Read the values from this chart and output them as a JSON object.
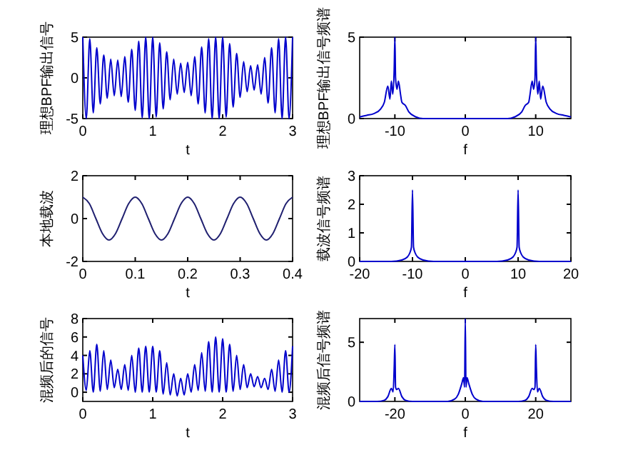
{
  "chart_data": [
    {
      "type": "line",
      "xlabel": "t",
      "ylabel": "理想BPF输出信号",
      "xlim": [
        0,
        3
      ],
      "ylim": [
        -5,
        5
      ],
      "xticks": [
        0,
        1,
        2,
        3
      ],
      "yticks": [
        -5,
        0,
        5
      ],
      "series": [
        {
          "color": "#0000cc",
          "x": [
            0,
            0.05,
            0.1,
            0.15,
            0.2,
            0.25,
            0.3,
            0.35,
            0.4,
            0.45,
            0.5,
            0.55,
            0.6,
            0.65,
            0.7,
            0.75,
            0.8,
            0.85,
            0.9,
            0.95,
            1,
            1.05,
            1.1,
            1.15,
            1.2,
            1.25,
            1.3,
            1.35,
            1.4,
            1.45,
            1.5,
            1.55,
            1.6,
            1.65,
            1.7,
            1.75,
            1.8,
            1.85,
            1.9,
            1.95,
            2,
            2.05,
            2.1,
            2.15,
            2.2,
            2.25,
            2.3,
            2.35,
            2.4,
            2.45,
            2.5,
            2.55,
            2.6,
            2.65,
            2.7,
            2.75,
            2.8,
            2.85,
            2.9,
            2.95,
            3
          ],
          "values": [
            5,
            -5,
            4.8,
            -4.3,
            3.7,
            -3.2,
            2.8,
            -2.5,
            2.3,
            -2.2,
            2.2,
            -2.3,
            2.6,
            -3,
            3.5,
            -4,
            4.5,
            -4.9,
            5,
            -5,
            5,
            -4.8,
            4.3,
            -3.8,
            3.2,
            -2.7,
            2.3,
            -2,
            1.8,
            -1.8,
            1.9,
            -2.2,
            2.6,
            -3.2,
            3.8,
            -4.3,
            4.8,
            -5,
            5,
            -5,
            5,
            -4.8,
            4.2,
            -3.6,
            3,
            -2.4,
            2,
            -1.7,
            1.5,
            -1.5,
            1.6,
            -2,
            2.5,
            -3.1,
            3.7,
            -4.3,
            4.8,
            -5,
            5,
            -5,
            5
          ]
        }
      ]
    },
    {
      "type": "line",
      "xlabel": "f",
      "ylabel": "理想BPF输出信号频谱",
      "xlim": [
        -15,
        15
      ],
      "ylim": [
        0,
        5
      ],
      "xticks": [
        -10,
        0,
        10
      ],
      "yticks": [
        0,
        5
      ],
      "series": [
        {
          "color": "#0000cc",
          "x": [
            -15,
            -14,
            -13,
            -12,
            -11.5,
            -11,
            -10.7,
            -10.5,
            -10.3,
            -10.1,
            -10,
            -9.9,
            -9.7,
            -9.5,
            -9.2,
            -9,
            -8.5,
            -8,
            -7,
            -6,
            0,
            6,
            7,
            8,
            8.5,
            9,
            9.2,
            9.5,
            9.7,
            9.9,
            10,
            10.1,
            10.3,
            10.5,
            10.7,
            11,
            11.5,
            12,
            13,
            14,
            15
          ],
          "values": [
            0.1,
            0.2,
            0.3,
            0.6,
            1,
            2,
            1.2,
            2.3,
            1.5,
            3,
            5,
            2.5,
            1.8,
            2.3,
            1.5,
            1,
            0.8,
            0.4,
            0.1,
            0,
            0,
            0,
            0.1,
            0.4,
            0.8,
            1,
            1.5,
            2.3,
            1.8,
            2.5,
            5,
            3,
            1.5,
            2.3,
            1.2,
            2,
            1,
            0.6,
            0.3,
            0.2,
            0.1
          ]
        }
      ]
    },
    {
      "type": "line",
      "xlabel": "t",
      "ylabel": "本地载波",
      "xlim": [
        0,
        0.4
      ],
      "ylim": [
        -2,
        2
      ],
      "xticks": [
        0,
        0.1,
        0.2,
        0.3,
        0.4
      ],
      "yticks": [
        -2,
        0,
        2
      ],
      "series": [
        {
          "color": "#202070",
          "x": [
            0,
            0.0125,
            0.025,
            0.0375,
            0.05,
            0.0625,
            0.075,
            0.0875,
            0.1,
            0.1125,
            0.125,
            0.1375,
            0.15,
            0.1625,
            0.175,
            0.1875,
            0.2,
            0.2125,
            0.225,
            0.2375,
            0.25,
            0.2625,
            0.275,
            0.2875,
            0.3,
            0.3125,
            0.325,
            0.3375,
            0.35,
            0.3625,
            0.375,
            0.3875,
            0.4
          ],
          "values": [
            1,
            0.7,
            0,
            -0.7,
            -1,
            -0.7,
            0,
            0.7,
            1,
            0.7,
            0,
            -0.7,
            -1,
            -0.7,
            0,
            0.7,
            1,
            0.7,
            0,
            -0.7,
            -1,
            -0.7,
            0,
            0.7,
            1,
            0.7,
            0,
            -0.7,
            -1,
            -0.7,
            0,
            0.7,
            1
          ]
        }
      ]
    },
    {
      "type": "line",
      "xlabel": "f",
      "ylabel": "载波信号频谱",
      "xlim": [
        -20,
        20
      ],
      "ylim": [
        0,
        3
      ],
      "xticks": [
        -20,
        -10,
        0,
        10,
        20
      ],
      "yticks": [
        0,
        1,
        2,
        3
      ],
      "series": [
        {
          "color": "#0000cc",
          "x": [
            -20,
            -14,
            -12,
            -11,
            -10.5,
            -10.2,
            -10,
            -9.8,
            -9.5,
            -9,
            -8,
            -6,
            0,
            6,
            8,
            9,
            9.5,
            9.8,
            10,
            10.2,
            10.5,
            11,
            12,
            14,
            20
          ],
          "values": [
            0,
            0,
            0.05,
            0.15,
            0.3,
            0.5,
            2.5,
            0.5,
            0.3,
            0.15,
            0.05,
            0,
            0,
            0,
            0.05,
            0.15,
            0.3,
            0.5,
            2.5,
            0.5,
            0.3,
            0.15,
            0.05,
            0,
            0
          ]
        }
      ]
    },
    {
      "type": "line",
      "xlabel": "t",
      "ylabel": "混频后的信号",
      "xlim": [
        0,
        3
      ],
      "ylim": [
        -1,
        8
      ],
      "xticks": [
        0,
        1,
        2,
        3
      ],
      "yticks": [
        0,
        2,
        4,
        6,
        8
      ],
      "series": [
        {
          "color": "#0000cc",
          "x": [
            0,
            0.05,
            0.1,
            0.15,
            0.2,
            0.25,
            0.3,
            0.35,
            0.4,
            0.45,
            0.5,
            0.55,
            0.6,
            0.65,
            0.7,
            0.75,
            0.8,
            0.85,
            0.9,
            0.95,
            1,
            1.05,
            1.1,
            1.15,
            1.2,
            1.25,
            1.3,
            1.35,
            1.4,
            1.45,
            1.5,
            1.55,
            1.6,
            1.65,
            1.7,
            1.75,
            1.8,
            1.85,
            1.9,
            1.95,
            2,
            2.05,
            2.1,
            2.15,
            2.2,
            2.25,
            2.3,
            2.35,
            2.4,
            2.45,
            2.5,
            2.55,
            2.6,
            2.65,
            2.7,
            2.75,
            2.8,
            2.85,
            2.9,
            2.95,
            3
          ],
          "values": [
            4,
            0.2,
            4.5,
            0,
            5.2,
            0.1,
            4.5,
            0.3,
            3.5,
            0.5,
            2.5,
            0.3,
            3,
            0.2,
            4,
            0,
            4.8,
            0,
            5,
            0,
            5,
            0,
            4.5,
            -0.2,
            3.2,
            -0.3,
            2,
            -0.4,
            1.5,
            -0.3,
            2,
            0,
            3,
            0.2,
            4.3,
            0.1,
            5.5,
            0,
            6,
            0,
            5.8,
            0,
            5.2,
            0.1,
            4,
            0.3,
            3,
            0.5,
            2,
            0.6,
            1.7,
            0.5,
            1.5,
            0.3,
            2.5,
            0.1,
            3.5,
            0,
            4.5,
            0,
            5
          ]
        }
      ]
    },
    {
      "type": "line",
      "xlabel": "f",
      "ylabel": "混频后信号频谱",
      "xlim": [
        -30,
        30
      ],
      "ylim": [
        0,
        7
      ],
      "xticks": [
        -20,
        0,
        20
      ],
      "yticks": [
        0,
        5
      ],
      "series": [
        {
          "color": "#0000cc",
          "x": [
            -30,
            -25,
            -23,
            -22,
            -21,
            -20.5,
            -20.2,
            -20,
            -19.8,
            -19.5,
            -19,
            -18,
            -17,
            -15,
            -5,
            -3,
            -2,
            -1,
            -0.5,
            -0.2,
            0,
            0.2,
            0.5,
            1,
            2,
            3,
            5,
            15,
            17,
            18,
            19,
            19.5,
            19.8,
            20,
            20.2,
            20.5,
            21,
            22,
            23,
            25,
            30
          ],
          "values": [
            0,
            0,
            0.1,
            0.4,
            1.1,
            0.8,
            2.8,
            4.8,
            1.2,
            1,
            1.1,
            0.4,
            0.1,
            0,
            0,
            0.2,
            0.6,
            1.5,
            2,
            1.2,
            7,
            1.2,
            2,
            1.5,
            0.6,
            0.2,
            0,
            0,
            0.1,
            0.4,
            1.1,
            1,
            1.2,
            4.8,
            2.8,
            0.8,
            1.1,
            0.4,
            0.1,
            0,
            0
          ]
        }
      ]
    }
  ]
}
